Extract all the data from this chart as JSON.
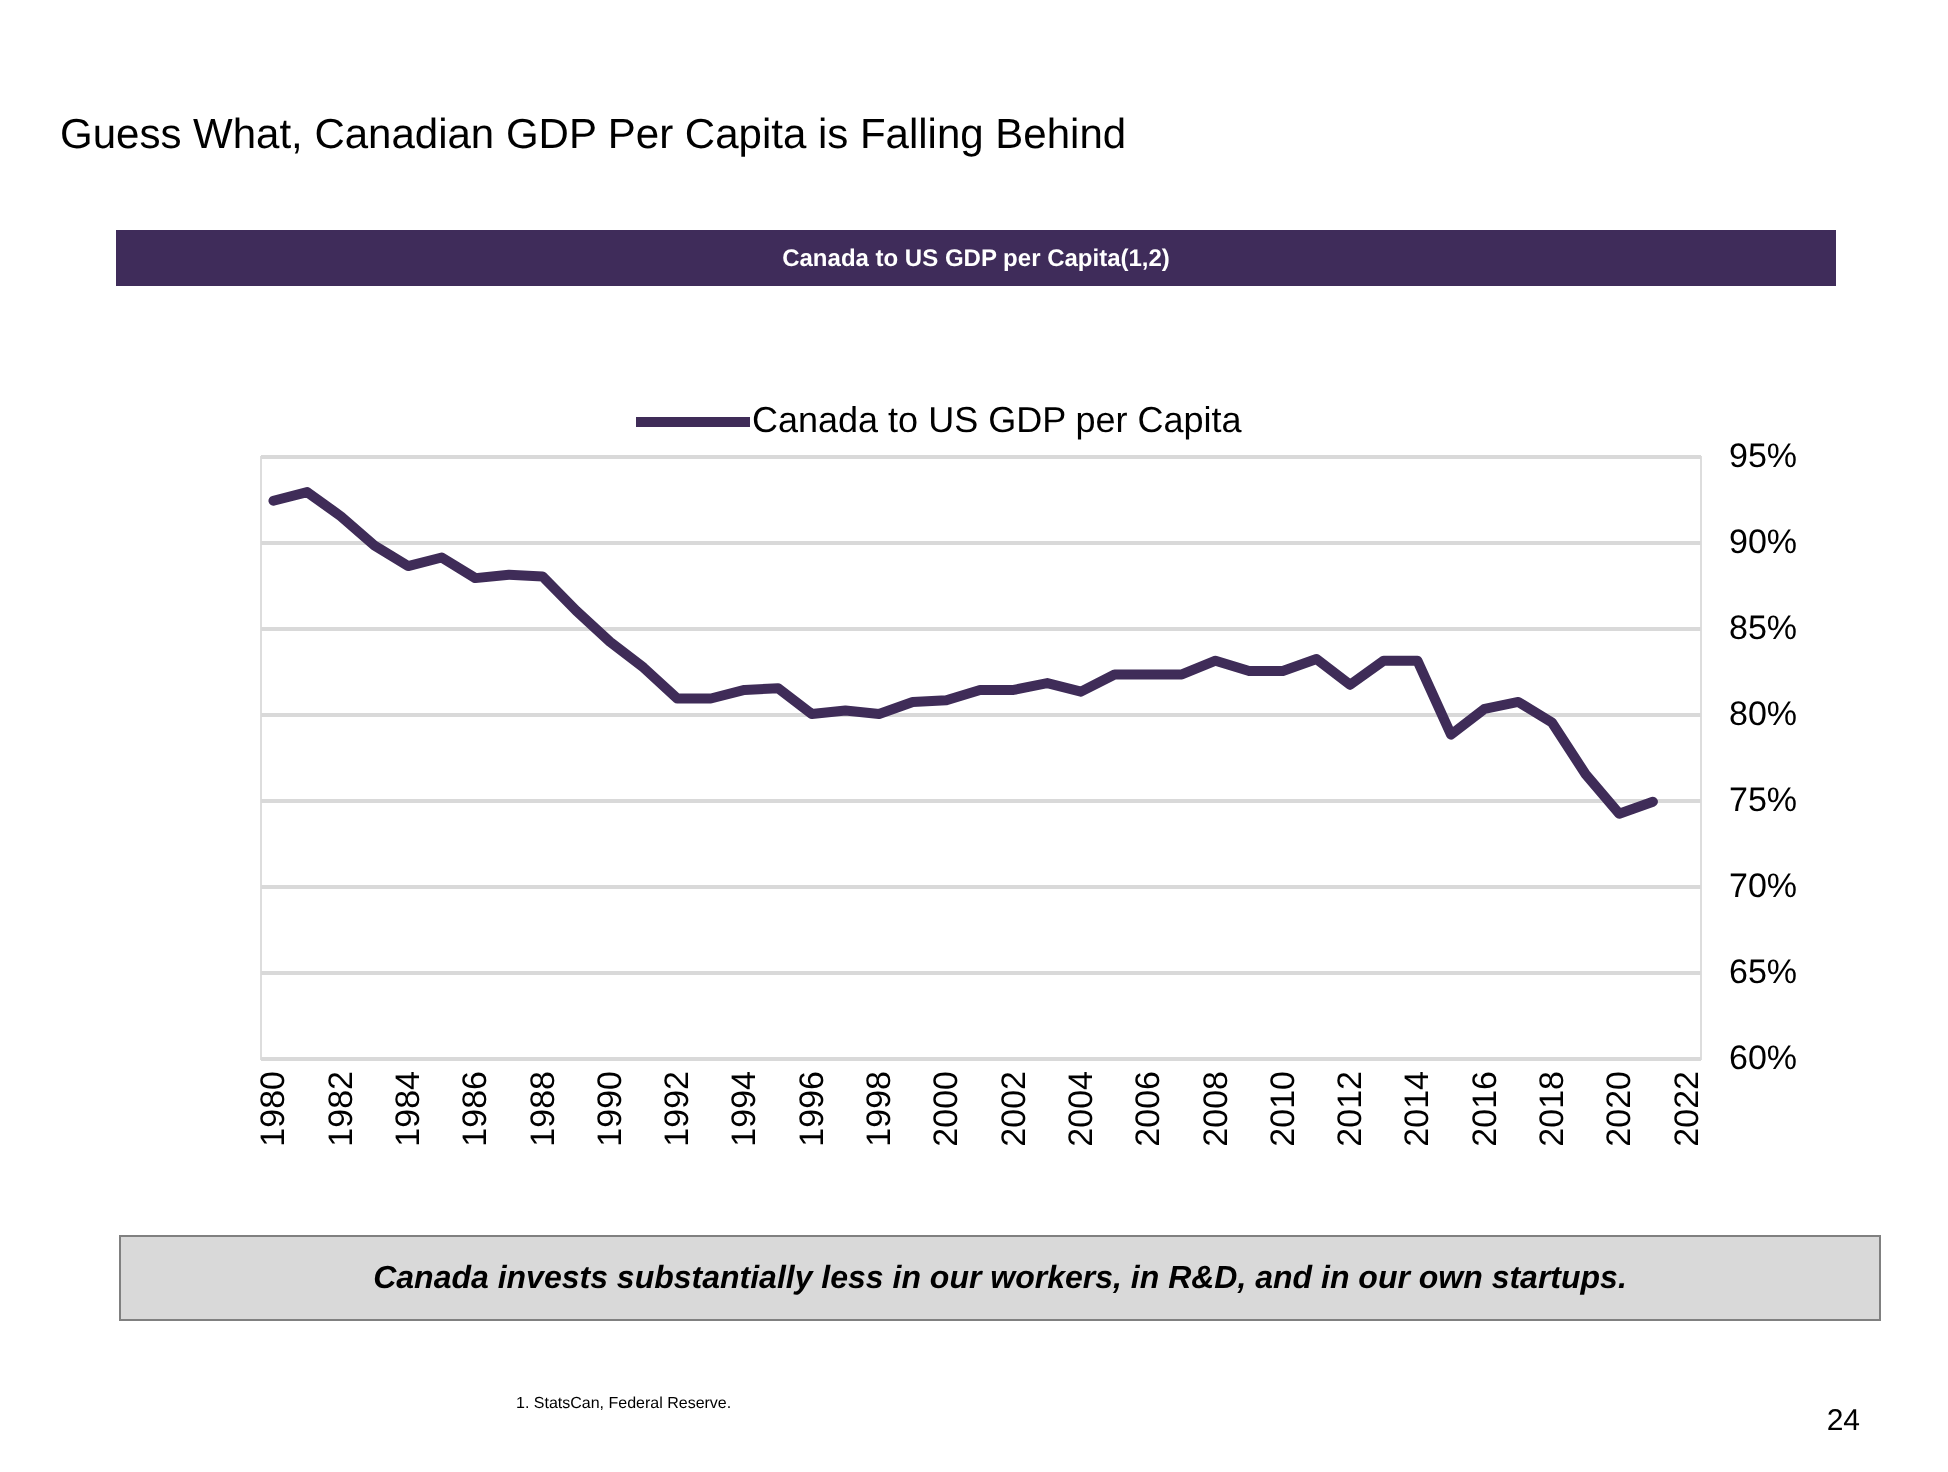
{
  "chart_data": {
    "type": "line",
    "title": "Guess What, Canadian GDP Per Capita is Falling Behind",
    "subtitle": "Canada to US GDP per Capita(1,2)",
    "categories": [
      "1980",
      null,
      "1982",
      null,
      "1984",
      null,
      "1986",
      null,
      "1988",
      null,
      "1990",
      null,
      "1992",
      null,
      "1994",
      null,
      "1996",
      null,
      "1998",
      null,
      "2000",
      null,
      "2002",
      null,
      "2004",
      null,
      "2006",
      null,
      "2008",
      null,
      "2010",
      null,
      "2012",
      null,
      "2014",
      null,
      "2016",
      null,
      "2018",
      null,
      "2020",
      null,
      "2022"
    ],
    "series": [
      {
        "name": "Canada to US GDP per Capita",
        "color": "#3f2c58",
        "values": [
          92.4,
          92.9,
          91.5,
          89.8,
          88.6,
          89.1,
          87.9,
          88.1,
          88.0,
          86.0,
          84.2,
          82.7,
          80.9,
          80.9,
          81.4,
          81.5,
          80.0,
          80.2,
          80.0,
          80.7,
          80.8,
          81.4,
          81.4,
          81.8,
          81.3,
          82.3,
          82.3,
          82.3,
          83.1,
          82.5,
          82.5,
          83.2,
          81.7,
          83.1,
          83.1,
          78.8,
          80.3,
          80.7,
          79.5,
          76.5,
          74.2,
          74.9,
          null
        ]
      }
    ],
    "ylim": [
      60,
      95
    ],
    "yticks": [
      {
        "value": 60,
        "label": "60%"
      },
      {
        "value": 65,
        "label": "65%"
      },
      {
        "value": 70,
        "label": "70%"
      },
      {
        "value": 75,
        "label": "75%"
      },
      {
        "value": 80,
        "label": "80%"
      },
      {
        "value": 85,
        "label": "85%"
      },
      {
        "value": 90,
        "label": "90%"
      },
      {
        "value": 95,
        "label": "95%"
      }
    ],
    "grid": "y",
    "legend": "top",
    "annotations": [
      "Canada invests substantially less in our workers, in R&D, and in our own startups.",
      "1. StatsCan, Federal Reserve.",
      "24"
    ]
  }
}
